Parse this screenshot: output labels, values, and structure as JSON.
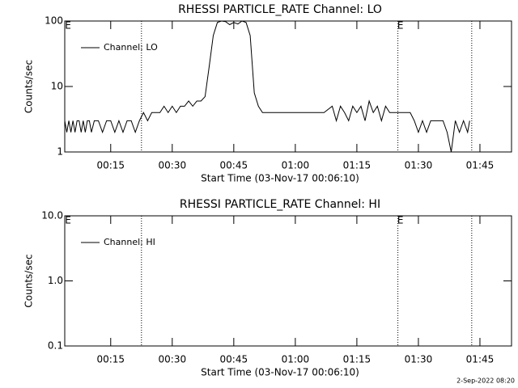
{
  "chart_data": [
    {
      "type": "line",
      "title": "RHESSI PARTICLE_RATE Channel: LO",
      "xlabel": "Start Time (03-Nov-17 00:06:10)",
      "ylabel": "Counts/sec",
      "log_y": true,
      "legend": "upper left",
      "xlim": [
        3.8,
        112.7
      ],
      "ylim": [
        1,
        100
      ],
      "xticks": [
        {
          "value": 15,
          "label": "00:15"
        },
        {
          "value": 30,
          "label": "00:30"
        },
        {
          "value": 45,
          "label": "00:45"
        },
        {
          "value": 60,
          "label": "01:00"
        },
        {
          "value": 75,
          "label": "01:15"
        },
        {
          "value": 90,
          "label": "01:30"
        },
        {
          "value": 105,
          "label": "01:45"
        }
      ],
      "yticks": [
        1,
        10,
        100
      ],
      "vlines": [
        22.5,
        85,
        103
      ],
      "annotations": [
        {
          "text": "E",
          "x": 4.6
        },
        {
          "text": "E",
          "x": 85.6
        }
      ],
      "x": [
        3.8,
        4.3,
        4.8,
        5.3,
        5.8,
        6.3,
        6.8,
        7.3,
        7.8,
        8.3,
        8.8,
        9.3,
        9.8,
        10.3,
        11,
        12,
        13,
        14,
        15,
        16,
        17,
        18,
        19,
        20,
        21,
        22,
        23,
        24,
        25,
        26,
        27,
        28,
        29,
        30,
        31,
        32,
        33,
        34,
        35,
        36,
        37,
        38,
        39,
        40,
        41,
        42,
        43,
        44,
        45,
        46,
        47,
        48,
        49,
        50,
        51,
        52,
        53,
        55,
        57,
        59,
        61,
        63,
        65,
        67,
        69,
        70,
        71,
        72,
        73,
        74,
        75,
        76,
        77,
        78,
        79,
        80,
        81,
        82,
        83,
        84,
        86,
        88,
        89,
        90,
        91,
        92,
        93,
        94,
        96,
        97,
        98,
        99,
        100,
        101,
        102,
        102.5
      ],
      "series": [
        {
          "name": "Channel: LO",
          "color": "#000000",
          "values": [
            3,
            2,
            3,
            2,
            3,
            2,
            3,
            3,
            2,
            3,
            2,
            3,
            3,
            2,
            3,
            3,
            2,
            3,
            3,
            2,
            3,
            2,
            3,
            3,
            2,
            3,
            4,
            3,
            4,
            4,
            4,
            5,
            4,
            5,
            4,
            5,
            5,
            6,
            5,
            6,
            6,
            7,
            20,
            60,
            95,
            100,
            98,
            88,
            95,
            90,
            100,
            95,
            60,
            8,
            5,
            4,
            4,
            4,
            4,
            4,
            4,
            4,
            4,
            4,
            5,
            3,
            5,
            4,
            3,
            5,
            4,
            5,
            3,
            6,
            4,
            5,
            3,
            5,
            4,
            4,
            4,
            4,
            3,
            2,
            3,
            2,
            3,
            3,
            3,
            2,
            1,
            3,
            2,
            3,
            2,
            3
          ]
        }
      ]
    },
    {
      "type": "line",
      "title": "RHESSI PARTICLE_RATE Channel: HI",
      "xlabel": "Start Time (03-Nov-17 00:06:10)",
      "ylabel": "Counts/sec",
      "log_y": true,
      "legend": "upper left",
      "xlim": [
        3.8,
        112.7
      ],
      "ylim": [
        0.1,
        10
      ],
      "xticks": [
        {
          "value": 15,
          "label": "00:15"
        },
        {
          "value": 30,
          "label": "00:30"
        },
        {
          "value": 45,
          "label": "00:45"
        },
        {
          "value": 60,
          "label": "01:00"
        },
        {
          "value": 75,
          "label": "01:15"
        },
        {
          "value": 90,
          "label": "01:30"
        },
        {
          "value": 105,
          "label": "01:45"
        }
      ],
      "yticks": [
        {
          "value": 0.1,
          "label": "0.1"
        },
        {
          "value": 1,
          "label": "1.0"
        },
        {
          "value": 10,
          "label": "10.0"
        }
      ],
      "vlines": [
        22.5,
        85,
        103
      ],
      "annotations": [
        {
          "text": "E",
          "x": 4.6
        },
        {
          "text": "E",
          "x": 85.6
        }
      ],
      "x": [],
      "series": [
        {
          "name": "Channel: HI",
          "color": "#000000",
          "values": []
        }
      ]
    }
  ],
  "footer": "2-Sep-2022 08:20"
}
